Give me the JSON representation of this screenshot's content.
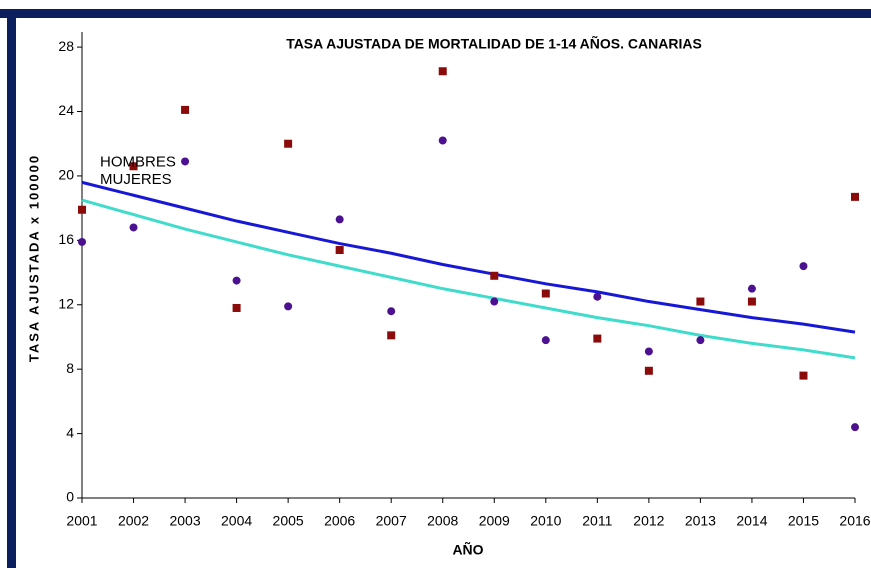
{
  "chart_data": {
    "type": "scatter",
    "title": "TASA AJUSTADA DE MORTALIDAD DE 1-14 AÑOS. CANARIAS",
    "x_label": "AÑO",
    "y_label": "TASA AJUSTADA x 100000",
    "categories": [
      "2001",
      "2002",
      "2003",
      "2004",
      "2005",
      "2006",
      "2007",
      "2008",
      "2009",
      "2010",
      "2011",
      "2012",
      "2013",
      "2014",
      "2015",
      "2016"
    ],
    "series": [
      {
        "color": "#8b0a0a",
        "marker": "square",
        "values": [
          17.9,
          20.6,
          24.1,
          11.8,
          22.0,
          15.4,
          10.1,
          26.5,
          13.8,
          12.7,
          9.9,
          7.9,
          12.2,
          12.2,
          7.6,
          18.7
        ]
      },
      {
        "color": "#4b1190",
        "marker": "circle",
        "values": [
          15.9,
          16.8,
          20.9,
          13.5,
          11.9,
          17.3,
          11.6,
          22.2,
          12.2,
          9.8,
          12.5,
          9.1,
          9.8,
          13.0,
          14.4,
          4.4
        ]
      },
      {
        "name": "HOMBRES",
        "color": "#1717d6",
        "label_color": "#1e9fe0",
        "marker": "line",
        "values": [
          19.6,
          18.8,
          18.0,
          17.2,
          16.5,
          15.8,
          15.2,
          14.5,
          13.9,
          13.3,
          12.8,
          12.2,
          11.7,
          11.2,
          10.8,
          10.3
        ]
      },
      {
        "name": "MUJERES",
        "color": "#3fdccb",
        "label_color": "#3cb44b",
        "marker": "line",
        "values": [
          18.5,
          17.6,
          16.7,
          15.9,
          15.1,
          14.4,
          13.7,
          13.0,
          12.4,
          11.8,
          11.2,
          10.7,
          10.1,
          9.6,
          9.2,
          8.7
        ]
      }
    ],
    "ylim": [
      0,
      29
    ],
    "yticks": [
      0,
      4,
      8,
      12,
      16,
      20,
      24,
      28
    ],
    "grid": false
  }
}
